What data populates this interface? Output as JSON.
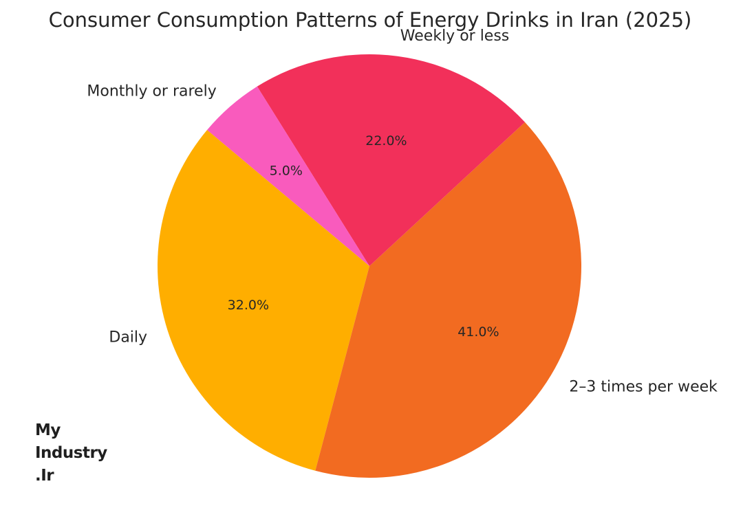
{
  "chart_data": {
    "type": "pie",
    "title": "Consumer Consumption Patterns of Energy Drinks in Iran (2025)",
    "slices": [
      {
        "label": "Daily",
        "value": 32.0,
        "pct_label": "32.0%",
        "color": "#FFAE00"
      },
      {
        "label": "2–3 times per week",
        "value": 41.0,
        "pct_label": "41.0%",
        "color": "#F26B21"
      },
      {
        "label": "Weekly or less",
        "value": 22.0,
        "pct_label": "22.0%",
        "color": "#F2305A"
      },
      {
        "label": "Monthly or rarely",
        "value": 5.0,
        "pct_label": "5.0%",
        "color": "#F95BBD"
      }
    ],
    "start_angle_deg": 140,
    "direction": "counterclockwise"
  },
  "watermark": {
    "line1": "My",
    "line2": "Industry",
    "line3": ".Ir"
  }
}
